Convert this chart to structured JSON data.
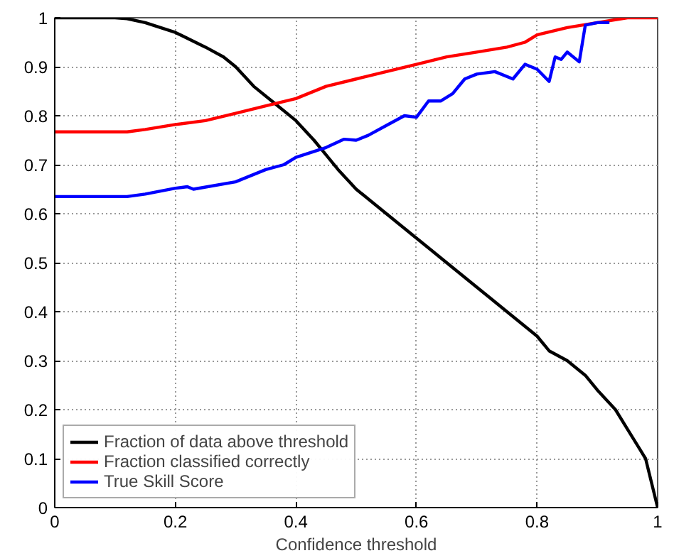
{
  "chart_data": {
    "type": "line",
    "xlabel": "Confidence threshold",
    "xlim": [
      0,
      1
    ],
    "ylim": [
      0,
      1
    ],
    "xticks": [
      0,
      0.2,
      0.4,
      0.6,
      0.8,
      1
    ],
    "yticks": [
      0,
      0.1,
      0.2,
      0.3,
      0.4,
      0.5,
      0.6,
      0.7,
      0.8,
      0.9,
      1
    ],
    "grid": true,
    "legend": "bottom left",
    "line_style": "solid",
    "series": [
      {
        "name": "Fraction of data above threshold",
        "color": "#000000",
        "x": [
          0,
          0.1,
          0.12,
          0.15,
          0.2,
          0.25,
          0.28,
          0.3,
          0.33,
          0.36,
          0.4,
          0.43,
          0.45,
          0.47,
          0.5,
          0.55,
          0.6,
          0.62,
          0.65,
          0.7,
          0.72,
          0.75,
          0.8,
          0.82,
          0.85,
          0.88,
          0.9,
          0.93,
          0.95,
          0.97,
          0.98,
          1
        ],
        "values": [
          1,
          1,
          0.998,
          0.99,
          0.97,
          0.94,
          0.92,
          0.9,
          0.86,
          0.83,
          0.79,
          0.75,
          0.72,
          0.69,
          0.65,
          0.6,
          0.55,
          0.53,
          0.5,
          0.45,
          0.43,
          0.4,
          0.35,
          0.32,
          0.3,
          0.27,
          0.24,
          0.2,
          0.16,
          0.12,
          0.1,
          0
        ]
      },
      {
        "name": "Fraction classified correctly",
        "color": "#ff0000",
        "x": [
          0,
          0.12,
          0.15,
          0.2,
          0.25,
          0.3,
          0.35,
          0.4,
          0.45,
          0.5,
          0.55,
          0.6,
          0.65,
          0.7,
          0.75,
          0.78,
          0.8,
          0.85,
          0.9,
          0.95,
          1
        ],
        "values": [
          0.767,
          0.767,
          0.772,
          0.782,
          0.79,
          0.805,
          0.82,
          0.835,
          0.86,
          0.875,
          0.89,
          0.905,
          0.92,
          0.93,
          0.94,
          0.95,
          0.965,
          0.98,
          0.99,
          1,
          1
        ]
      },
      {
        "name": "True Skill Score",
        "color": "#0000ff",
        "x": [
          0,
          0.12,
          0.15,
          0.2,
          0.22,
          0.23,
          0.3,
          0.35,
          0.38,
          0.4,
          0.45,
          0.48,
          0.5,
          0.52,
          0.55,
          0.58,
          0.6,
          0.62,
          0.64,
          0.66,
          0.68,
          0.7,
          0.73,
          0.76,
          0.78,
          0.8,
          0.82,
          0.83,
          0.84,
          0.85,
          0.87,
          0.88,
          0.9,
          0.92
        ],
        "values": [
          0.635,
          0.635,
          0.64,
          0.652,
          0.655,
          0.65,
          0.665,
          0.69,
          0.7,
          0.715,
          0.735,
          0.752,
          0.75,
          0.76,
          0.78,
          0.8,
          0.797,
          0.83,
          0.83,
          0.845,
          0.875,
          0.885,
          0.89,
          0.875,
          0.905,
          0.895,
          0.87,
          0.92,
          0.915,
          0.93,
          0.91,
          0.985,
          0.99,
          0.99
        ]
      }
    ]
  }
}
